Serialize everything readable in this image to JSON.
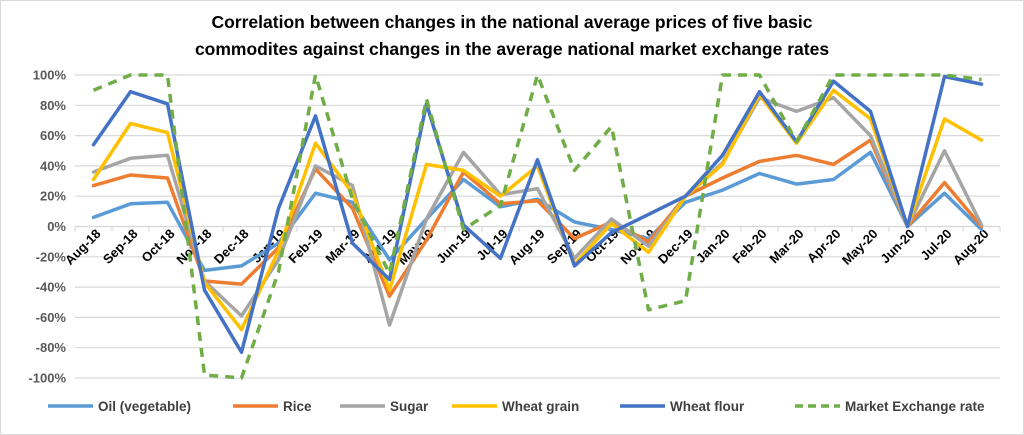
{
  "chart_data": {
    "type": "line",
    "title_line1": "Correlation between changes in the national average prices of five basic",
    "title_line2": "commodites against changes in the average national market exchange rates",
    "xlabel": "",
    "ylabel": "",
    "ylim": [
      -100,
      100
    ],
    "ytick_step": 20,
    "ytick_format": "percent",
    "grid": true,
    "legend_position": "bottom",
    "categories": [
      "Aug-18",
      "Sep-18",
      "Oct-18",
      "Nov-18",
      "Dec-18",
      "Jan-19",
      "Feb-19",
      "Mar-19",
      "Apr-19",
      "May-19",
      "Jun-19",
      "Jul-19",
      "Aug-19",
      "Sep-19",
      "Oct-19",
      "Nov-19",
      "Dec-19",
      "Jan-20",
      "Feb-20",
      "Mar-20",
      "Apr-20",
      "May-20",
      "Jun-20",
      "Jul-20",
      "Aug-20"
    ],
    "series": [
      {
        "name": "Oil (vegetable)",
        "color": "#5b9bd5",
        "dashed": false,
        "values": [
          6,
          15,
          16,
          -29,
          -26,
          -11,
          22,
          16,
          -22,
          5,
          31,
          13,
          18,
          3,
          -2,
          -8,
          16,
          24,
          35,
          28,
          31,
          49,
          0,
          22,
          -2
        ]
      },
      {
        "name": "Rice",
        "color": "#ed7d31",
        "dashed": false,
        "values": [
          27,
          34,
          32,
          -36,
          -38,
          -14,
          38,
          12,
          -46,
          -9,
          36,
          15,
          17,
          -8,
          3,
          -10,
          20,
          32,
          43,
          47,
          41,
          57,
          0,
          29,
          0
        ]
      },
      {
        "name": "Sugar",
        "color": "#a5a5a5",
        "dashed": false,
        "values": [
          36,
          45,
          47,
          -36,
          -59,
          -22,
          40,
          27,
          -65,
          5,
          49,
          21,
          25,
          -21,
          5,
          -13,
          20,
          42,
          85,
          76,
          85,
          60,
          0,
          50,
          1
        ]
      },
      {
        "name": "Wheat grain",
        "color": "#ffc000",
        "dashed": false,
        "values": [
          31,
          68,
          62,
          -37,
          -68,
          -16,
          55,
          22,
          -42,
          41,
          37,
          20,
          40,
          -25,
          2,
          -17,
          20,
          41,
          87,
          55,
          90,
          71,
          0,
          71,
          57
        ]
      },
      {
        "name": "Wheat flour",
        "color": "#4472c4",
        "dashed": false,
        "values": [
          54,
          89,
          81,
          -42,
          -83,
          12,
          73,
          -11,
          -35,
          81,
          1,
          -21,
          44,
          -26,
          -4,
          8,
          20,
          47,
          89,
          56,
          96,
          76,
          0,
          99,
          94
        ]
      },
      {
        "name": "Market Exchange rate",
        "color": "#70ad47",
        "dashed": true,
        "values": [
          90,
          100,
          100,
          -98,
          -100,
          -30,
          100,
          18,
          -31,
          84,
          -2,
          14,
          100,
          37,
          66,
          -55,
          -49,
          100,
          100,
          56,
          100,
          100,
          100,
          100,
          97
        ]
      }
    ]
  }
}
